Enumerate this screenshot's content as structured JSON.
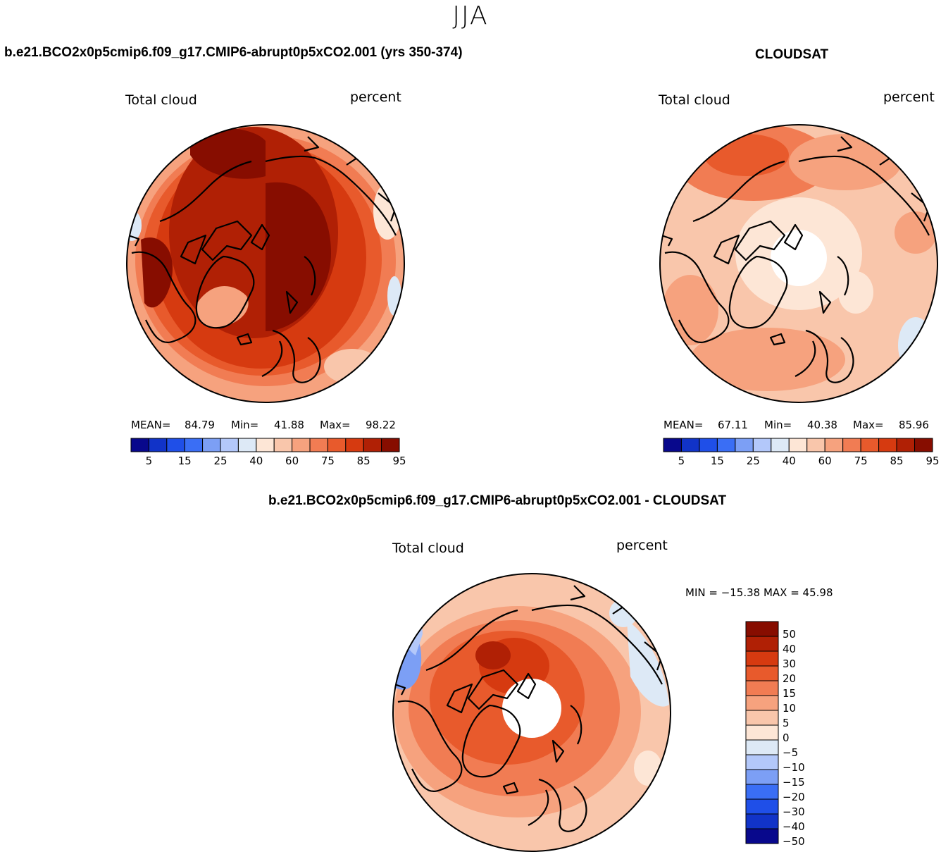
{
  "season": "JJA",
  "titles": {
    "model": "b.e21.BCO2x0p5cmip6.f09_g17.CMIP6-abrupt0p5xCO2.001 (yrs 350-374)",
    "obs": "CLOUDSAT",
    "diff": "b.e21.BCO2x0p5cmip6.f09_g17.CMIP6-abrupt0p5xCO2.001 - CLOUDSAT"
  },
  "panels": {
    "model": {
      "var": "Total cloud",
      "units": "percent",
      "mean_label": "MEAN=",
      "mean": "84.79",
      "min_label": "Min=",
      "min": "41.88",
      "max_label": "Max=",
      "max": "98.22"
    },
    "obs": {
      "var": "Total cloud",
      "units": "percent",
      "mean_label": "MEAN=",
      "mean": "67.11",
      "min_label": "Min=",
      "min": "40.38",
      "max_label": "Max=",
      "max": "85.96"
    },
    "diff": {
      "var": "Total cloud",
      "units": "percent",
      "minmax": "MIN = −15.38 MAX =   45.98"
    }
  },
  "colorbar_abs": {
    "ticks": [
      "5",
      "15",
      "25",
      "40",
      "60",
      "75",
      "85",
      "95"
    ],
    "colors": [
      "#08088c",
      "#1133c8",
      "#1f4fe8",
      "#3a6ef5",
      "#7c9ff5",
      "#b3c8fa",
      "#dde9f6",
      "#fde6d6",
      "#f9c6ab",
      "#f6a27e",
      "#f17c53",
      "#e85a2c",
      "#d63a10",
      "#b02005",
      "#870d00"
    ]
  },
  "colorbar_diff": {
    "labels": [
      "50",
      "40",
      "30",
      "20",
      "15",
      "10",
      "5",
      "0",
      "−5",
      "−10",
      "−15",
      "−20",
      "−30",
      "−40",
      "−50"
    ],
    "colors": [
      "#870d00",
      "#b02005",
      "#d63a10",
      "#e85a2c",
      "#f17c53",
      "#f6a27e",
      "#f9c6ab",
      "#fde6d6",
      "#dde9f6",
      "#b3c8fa",
      "#7c9ff5",
      "#3a6ef5",
      "#1f4fe8",
      "#1133c8",
      "#08088c"
    ]
  }
}
